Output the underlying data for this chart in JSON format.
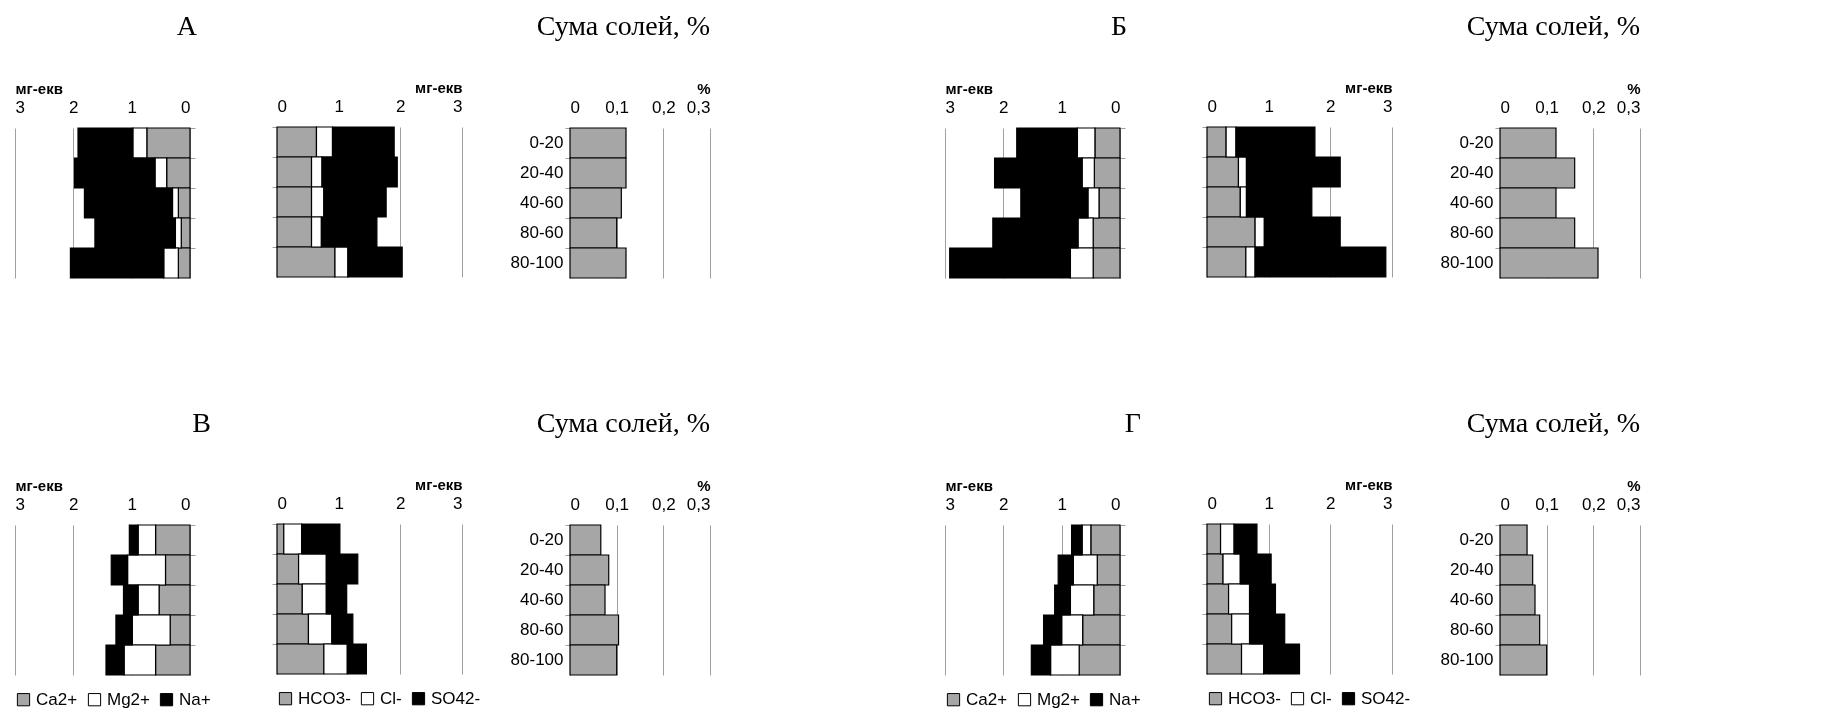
{
  "chart_data": [
    {
      "type": "bar",
      "orientation": "horizontal",
      "stacked": true,
      "title": "А",
      "xlabel": "мг-екв",
      "categories": [
        null,
        null,
        null,
        null,
        null
      ],
      "xlim": [
        3,
        0
      ],
      "xticks": [
        3,
        2,
        1,
        0
      ],
      "grid": "x",
      "series": [
        {
          "color": "#a6a6a6",
          "values": [
            0.74,
            0.4,
            0.2,
            0.15,
            0.2
          ]
        },
        {
          "color": "#ffffff",
          "values": [
            0.24,
            0.2,
            0.1,
            0.1,
            0.25
          ]
        },
        {
          "color": "#000000",
          "values": [
            0.94,
            1.38,
            1.51,
            1.38,
            1.6
          ]
        }
      ]
    },
    {
      "type": "bar",
      "orientation": "horizontal",
      "stacked": true,
      "xlabel": "мг-екв",
      "categories": [
        null,
        null,
        null,
        null,
        null
      ],
      "xlim": [
        0,
        3
      ],
      "xticks": [
        0,
        1,
        2,
        3
      ],
      "grid": "x",
      "series": [
        {
          "color": "#a6a6a6",
          "values": [
            0.64,
            0.56,
            0.56,
            0.56,
            0.94
          ]
        },
        {
          "color": "#ffffff",
          "values": [
            0.26,
            0.17,
            0.2,
            0.16,
            0.21
          ]
        },
        {
          "color": "#000000",
          "values": [
            1.0,
            1.22,
            1.01,
            0.9,
            0.88
          ]
        }
      ]
    },
    {
      "type": "bar",
      "orientation": "horizontal",
      "title": "Сума солей, %",
      "xlabel": "%",
      "categories": [
        "0-20",
        "20-40",
        "40-60",
        "80-60",
        "80-100"
      ],
      "values": [
        0.12,
        0.12,
        0.11,
        0.1,
        0.12
      ],
      "color": "#a6a6a6",
      "xlim": [
        0,
        0.3
      ],
      "xticks": [
        0,
        {
          "value": 0.1,
          "label": "0,1"
        },
        {
          "value": 0.2,
          "label": "0,2"
        },
        {
          "value": 0.3,
          "label": "0,3"
        }
      ],
      "grid": "x"
    },
    {
      "type": "bar",
      "orientation": "horizontal",
      "stacked": true,
      "title": "Б",
      "xlabel": "мг-екв",
      "categories": [
        null,
        null,
        null,
        null,
        null
      ],
      "xlim": [
        3,
        0
      ],
      "xticks": [
        3,
        2,
        1,
        0
      ],
      "grid": "x",
      "series": [
        {
          "color": "#a6a6a6",
          "values": [
            0.43,
            0.44,
            0.36,
            0.46,
            0.46
          ]
        },
        {
          "color": "#ffffff",
          "values": [
            0.3,
            0.21,
            0.19,
            0.26,
            0.39
          ]
        },
        {
          "color": "#000000",
          "values": [
            1.04,
            1.5,
            1.15,
            1.46,
            2.07
          ]
        }
      ]
    },
    {
      "type": "bar",
      "orientation": "horizontal",
      "stacked": true,
      "xlabel": "мг-екв",
      "categories": [
        null,
        null,
        null,
        null,
        null
      ],
      "xlim": [
        0,
        3
      ],
      "xticks": [
        0,
        1,
        2,
        3
      ],
      "grid": "x",
      "series": [
        {
          "color": "#a6a6a6",
          "values": [
            0.31,
            0.51,
            0.54,
            0.78,
            0.63
          ]
        },
        {
          "color": "#ffffff",
          "values": [
            0.16,
            0.13,
            0.1,
            0.15,
            0.15
          ]
        },
        {
          "color": "#000000",
          "values": [
            1.28,
            1.52,
            1.06,
            1.23,
            2.12
          ]
        }
      ]
    },
    {
      "type": "bar",
      "orientation": "horizontal",
      "title": "Сума солей, %",
      "xlabel": "%",
      "categories": [
        "0-20",
        "20-40",
        "40-60",
        "80-60",
        "80-100"
      ],
      "values": [
        0.12,
        0.16,
        0.12,
        0.16,
        0.21
      ],
      "color": "#a6a6a6",
      "xlim": [
        0,
        0.3
      ],
      "xticks": [
        0,
        {
          "value": 0.1,
          "label": "0,1"
        },
        {
          "value": 0.2,
          "label": "0,2"
        },
        {
          "value": 0.3,
          "label": "0,3"
        }
      ],
      "grid": "x"
    },
    {
      "type": "bar",
      "orientation": "horizontal",
      "stacked": true,
      "title": "В",
      "xlabel": "мг-екв",
      "categories": [
        null,
        null,
        null,
        null,
        null
      ],
      "xlim": [
        3,
        0
      ],
      "xticks": [
        3,
        2,
        1,
        0
      ],
      "grid": "x",
      "legend": "bottom",
      "series": [
        {
          "name": "Ca2+",
          "color": "#a6a6a6",
          "values": [
            0.59,
            0.42,
            0.53,
            0.34,
            0.59
          ]
        },
        {
          "name": "Mg2+",
          "color": "#ffffff",
          "values": [
            0.3,
            0.65,
            0.36,
            0.65,
            0.54
          ]
        },
        {
          "name": "Na+",
          "color": "#000000",
          "values": [
            0.15,
            0.28,
            0.25,
            0.28,
            0.31
          ]
        }
      ]
    },
    {
      "type": "bar",
      "orientation": "horizontal",
      "stacked": true,
      "xlabel": "мг-екв",
      "categories": [
        null,
        null,
        null,
        null,
        null
      ],
      "xlim": [
        0,
        3
      ],
      "xticks": [
        0,
        1,
        2,
        3
      ],
      "grid": "x",
      "legend": "bottom",
      "series": [
        {
          "name": "HCO3-",
          "color": "#a6a6a6",
          "values": [
            0.11,
            0.35,
            0.41,
            0.51,
            0.76
          ]
        },
        {
          "name": "Cl-",
          "color": "#ffffff",
          "values": [
            0.29,
            0.45,
            0.39,
            0.38,
            0.38
          ]
        },
        {
          "name": "SO42-",
          "color": "#000000",
          "values": [
            0.62,
            0.51,
            0.33,
            0.34,
            0.31
          ]
        }
      ]
    },
    {
      "type": "bar",
      "orientation": "horizontal",
      "title": "Сума солей, %",
      "xlabel": "%",
      "categories": [
        "0-20",
        "20-40",
        "40-60",
        "80-60",
        "80-100"
      ],
      "values": [
        0.066,
        0.083,
        0.075,
        0.104,
        0.1
      ],
      "color": "#a6a6a6",
      "xlim": [
        0,
        0.3
      ],
      "xticks": [
        0,
        {
          "value": 0.1,
          "label": "0,1"
        },
        {
          "value": 0.2,
          "label": "0,2"
        },
        {
          "value": 0.3,
          "label": "0,3"
        }
      ],
      "grid": "x"
    },
    {
      "type": "bar",
      "orientation": "horizontal",
      "stacked": true,
      "title": "Г",
      "xlabel": "мг-екв",
      "categories": [
        null,
        null,
        null,
        null,
        null
      ],
      "xlim": [
        3,
        0
      ],
      "xticks": [
        3,
        2,
        1,
        0
      ],
      "grid": "x",
      "legend": "bottom",
      "series": [
        {
          "name": "Ca2+",
          "color": "#a6a6a6",
          "values": [
            0.5,
            0.39,
            0.45,
            0.64,
            0.7
          ]
        },
        {
          "name": "Mg2+",
          "color": "#ffffff",
          "values": [
            0.15,
            0.41,
            0.4,
            0.36,
            0.49
          ]
        },
        {
          "name": "Na+",
          "color": "#000000",
          "values": [
            0.18,
            0.26,
            0.27,
            0.31,
            0.33
          ]
        }
      ]
    },
    {
      "type": "bar",
      "orientation": "horizontal",
      "stacked": true,
      "xlabel": "мг-екв",
      "categories": [
        null,
        null,
        null,
        null,
        null
      ],
      "xlim": [
        0,
        3
      ],
      "xticks": [
        0,
        1,
        2,
        3
      ],
      "grid": "x",
      "legend": "bottom",
      "series": [
        {
          "name": "HCO3-",
          "color": "#a6a6a6",
          "values": [
            0.22,
            0.26,
            0.35,
            0.4,
            0.56
          ]
        },
        {
          "name": "Cl-",
          "color": "#ffffff",
          "values": [
            0.22,
            0.28,
            0.34,
            0.29,
            0.36
          ]
        },
        {
          "name": "SO42-",
          "color": "#000000",
          "values": [
            0.37,
            0.5,
            0.42,
            0.57,
            0.58
          ]
        }
      ]
    },
    {
      "type": "bar",
      "orientation": "horizontal",
      "title": "Сума солей, %",
      "xlabel": "%",
      "categories": [
        "0-20",
        "20-40",
        "40-60",
        "80-60",
        "80-100"
      ],
      "values": [
        0.058,
        0.07,
        0.075,
        0.085,
        0.1
      ],
      "color": "#a6a6a6",
      "xlim": [
        0,
        0.3
      ],
      "xticks": [
        0,
        {
          "value": 0.1,
          "label": "0,1"
        },
        {
          "value": 0.2,
          "label": "0,2"
        },
        {
          "value": 0.3,
          "label": "0,3"
        }
      ],
      "grid": "x"
    }
  ]
}
